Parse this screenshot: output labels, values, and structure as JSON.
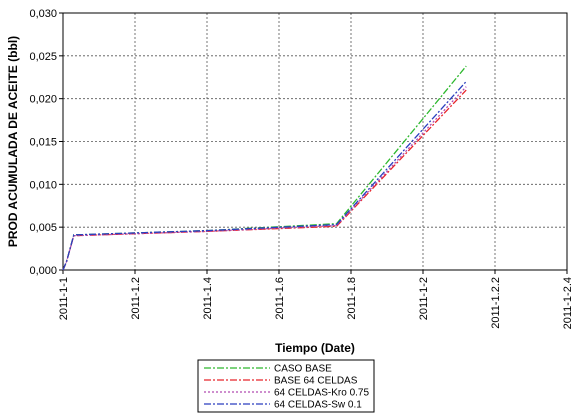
{
  "chart_data": {
    "type": "line",
    "title": "",
    "xlabel": "Tiempo (Date)",
    "ylabel": "PROD ACUMULADA DE ACEITE (bbl)",
    "x_tick_labels": [
      "2011-1-1",
      "2011-1.2",
      "2011-1.4",
      "2011-1.6",
      "2011-1.8",
      "2011-1-2",
      "2011-1.2.2",
      "2011-1-2.4"
    ],
    "y_tick_labels": [
      "0,000",
      "0,005",
      "0,010",
      "0,015",
      "0,020",
      "0,025",
      "0,030"
    ],
    "xlim": [
      0,
      1.4
    ],
    "ylim": [
      0,
      0.03
    ],
    "grid": true,
    "legend_position": "bottom-center",
    "series": [
      {
        "name": "CASO BASE",
        "color": "#2db82d",
        "dash": "dashdot",
        "x": [
          0,
          0.01,
          0.03,
          0.4,
          0.76,
          1.12
        ],
        "y": [
          0,
          0.001,
          0.0041,
          0.0046,
          0.0054,
          0.0238
        ]
      },
      {
        "name": "BASE 64 CELDAS",
        "color": "#e8252a",
        "dash": "dashdot",
        "x": [
          0,
          0.01,
          0.03,
          0.4,
          0.76,
          1.12
        ],
        "y": [
          0,
          0.001,
          0.004,
          0.0045,
          0.0051,
          0.021
        ]
      },
      {
        "name": "64 CELDAS-Kro 0.75",
        "color": "#b04ab0",
        "dash": "dotted",
        "x": [
          0,
          0.01,
          0.03,
          0.4,
          0.76,
          1.12
        ],
        "y": [
          0,
          0.001,
          0.004,
          0.0045,
          0.0052,
          0.0214
        ]
      },
      {
        "name": "64 CELDAS-Sw 0.1",
        "color": "#2a3fbf",
        "dash": "dashdot",
        "x": [
          0,
          0.01,
          0.03,
          0.4,
          0.76,
          1.12
        ],
        "y": [
          0,
          0.001,
          0.0041,
          0.0046,
          0.0053,
          0.022
        ]
      }
    ]
  }
}
